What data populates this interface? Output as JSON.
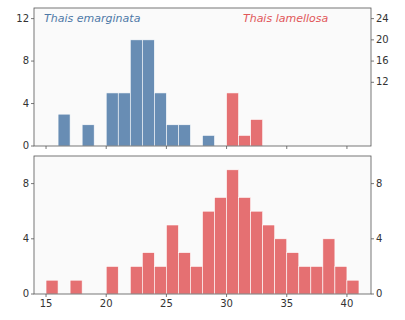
{
  "chart_data": [
    {
      "type": "histogram",
      "bins": [
        15,
        16,
        17,
        18,
        19,
        20,
        21,
        22,
        23,
        24,
        25,
        26,
        27,
        28,
        29,
        30,
        31,
        32,
        33,
        34,
        35,
        36,
        37,
        38,
        39,
        40,
        41
      ],
      "series": [
        {
          "name": "Thais emarginata",
          "color": "#4e79a7",
          "values": [
            0,
            3,
            0,
            2,
            0,
            5,
            5,
            10,
            10,
            5,
            2,
            2,
            0,
            1,
            0,
            0,
            0,
            0,
            0,
            0,
            0,
            0,
            0,
            0,
            0,
            0
          ]
        },
        {
          "name": "Thais lamellosa",
          "color": "#e15759",
          "axis": "y2",
          "values": [
            0,
            0,
            0,
            0,
            0,
            0,
            0,
            0,
            0,
            0,
            0,
            0,
            0,
            0,
            0,
            10,
            2,
            5,
            0,
            0,
            0,
            0,
            0,
            0,
            0,
            0
          ]
        }
      ],
      "xlim": [
        14,
        42
      ],
      "xticks": [
        15,
        20,
        25,
        30,
        35,
        40
      ],
      "ylim": [
        0,
        13
      ],
      "yticks": [
        0,
        4,
        8,
        12
      ],
      "y2lim": [
        0,
        26
      ],
      "y2ticks": [
        12,
        16,
        20,
        24
      ],
      "tick_labels": "y"
    },
    {
      "type": "histogram",
      "bins": [
        15,
        16,
        17,
        18,
        19,
        20,
        21,
        22,
        23,
        24,
        25,
        26,
        27,
        28,
        29,
        30,
        31,
        32,
        33,
        34,
        35,
        36,
        37,
        38,
        39,
        40,
        41
      ],
      "values": [
        1,
        0,
        1,
        0,
        0,
        2,
        0,
        2,
        3,
        2,
        5,
        3,
        2,
        6,
        7,
        9,
        7,
        6,
        5,
        4,
        3,
        2,
        2,
        4,
        2,
        1
      ],
      "color": "#e15759",
      "xlim": [
        14,
        42
      ],
      "xticks": [
        15,
        20,
        25,
        30,
        35,
        40
      ],
      "ylim": [
        0,
        10
      ],
      "yticks": [
        0,
        4,
        8
      ],
      "y2lim": [
        0,
        10
      ],
      "y2ticks": [
        0,
        4,
        8
      ]
    }
  ]
}
